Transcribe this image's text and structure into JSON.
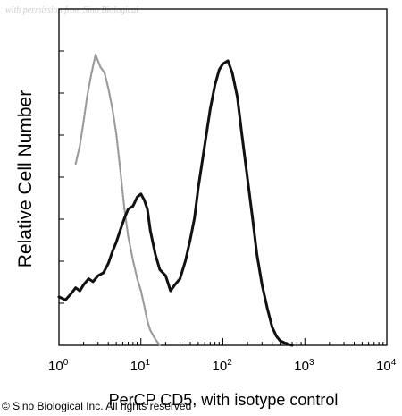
{
  "watermark": "with permission from Sino Biological",
  "copyright": "© Sino Biological Inc. All rights reserved",
  "chart_data": {
    "type": "area",
    "title": "",
    "xlabel": "PerCP CD5, with isotype control",
    "ylabel": "Relative Cell Number",
    "xscale": "log",
    "xlim": [
      1,
      10000
    ],
    "ylim": [
      0,
      1
    ],
    "y_tick_labels_shown": false,
    "x_ticks": [
      {
        "value": 1,
        "base": "10",
        "exp": "0"
      },
      {
        "value": 10,
        "base": "10",
        "exp": "1"
      },
      {
        "value": 100,
        "base": "10",
        "exp": "2"
      },
      {
        "value": 1000,
        "base": "10",
        "exp": "3"
      },
      {
        "value": 10000,
        "base": "10",
        "exp": "4"
      }
    ],
    "series": [
      {
        "role": "isotype control",
        "color": "#9a9a9a",
        "style": "dotted",
        "x": [
          1.6,
          1.8,
          2.0,
          2.2,
          2.5,
          2.8,
          3.2,
          3.6,
          4.0,
          4.5,
          5.0,
          5.6,
          6.3,
          7.0,
          8.0,
          9.0,
          10,
          11,
          12,
          13,
          15,
          17
        ],
        "y": [
          0.6,
          0.66,
          0.74,
          0.82,
          0.9,
          0.96,
          0.92,
          0.9,
          0.85,
          0.78,
          0.7,
          0.58,
          0.45,
          0.36,
          0.28,
          0.22,
          0.18,
          0.13,
          0.08,
          0.05,
          0.02,
          0.0
        ]
      },
      {
        "role": "PerCP CD5",
        "color": "#111111",
        "style": "solid",
        "x": [
          1,
          1.2,
          1.4,
          1.6,
          1.8,
          2.0,
          2.3,
          2.6,
          3.0,
          3.5,
          4.0,
          4.5,
          5.0,
          5.6,
          6.3,
          7.0,
          8.0,
          9.0,
          10,
          11,
          12,
          13,
          15,
          17,
          20,
          23,
          26,
          30,
          35,
          40,
          45,
          50,
          60,
          70,
          80,
          90,
          100,
          115,
          130,
          150,
          170,
          200,
          230,
          260,
          300,
          350,
          400,
          450,
          500,
          600,
          700
        ],
        "y": [
          0.16,
          0.15,
          0.17,
          0.19,
          0.18,
          0.2,
          0.22,
          0.21,
          0.23,
          0.24,
          0.27,
          0.31,
          0.34,
          0.38,
          0.42,
          0.45,
          0.46,
          0.49,
          0.5,
          0.48,
          0.45,
          0.38,
          0.3,
          0.25,
          0.23,
          0.18,
          0.2,
          0.22,
          0.28,
          0.35,
          0.42,
          0.52,
          0.66,
          0.78,
          0.86,
          0.91,
          0.93,
          0.94,
          0.9,
          0.82,
          0.7,
          0.55,
          0.42,
          0.3,
          0.2,
          0.12,
          0.06,
          0.03,
          0.015,
          0.005,
          0.0
        ]
      }
    ]
  }
}
